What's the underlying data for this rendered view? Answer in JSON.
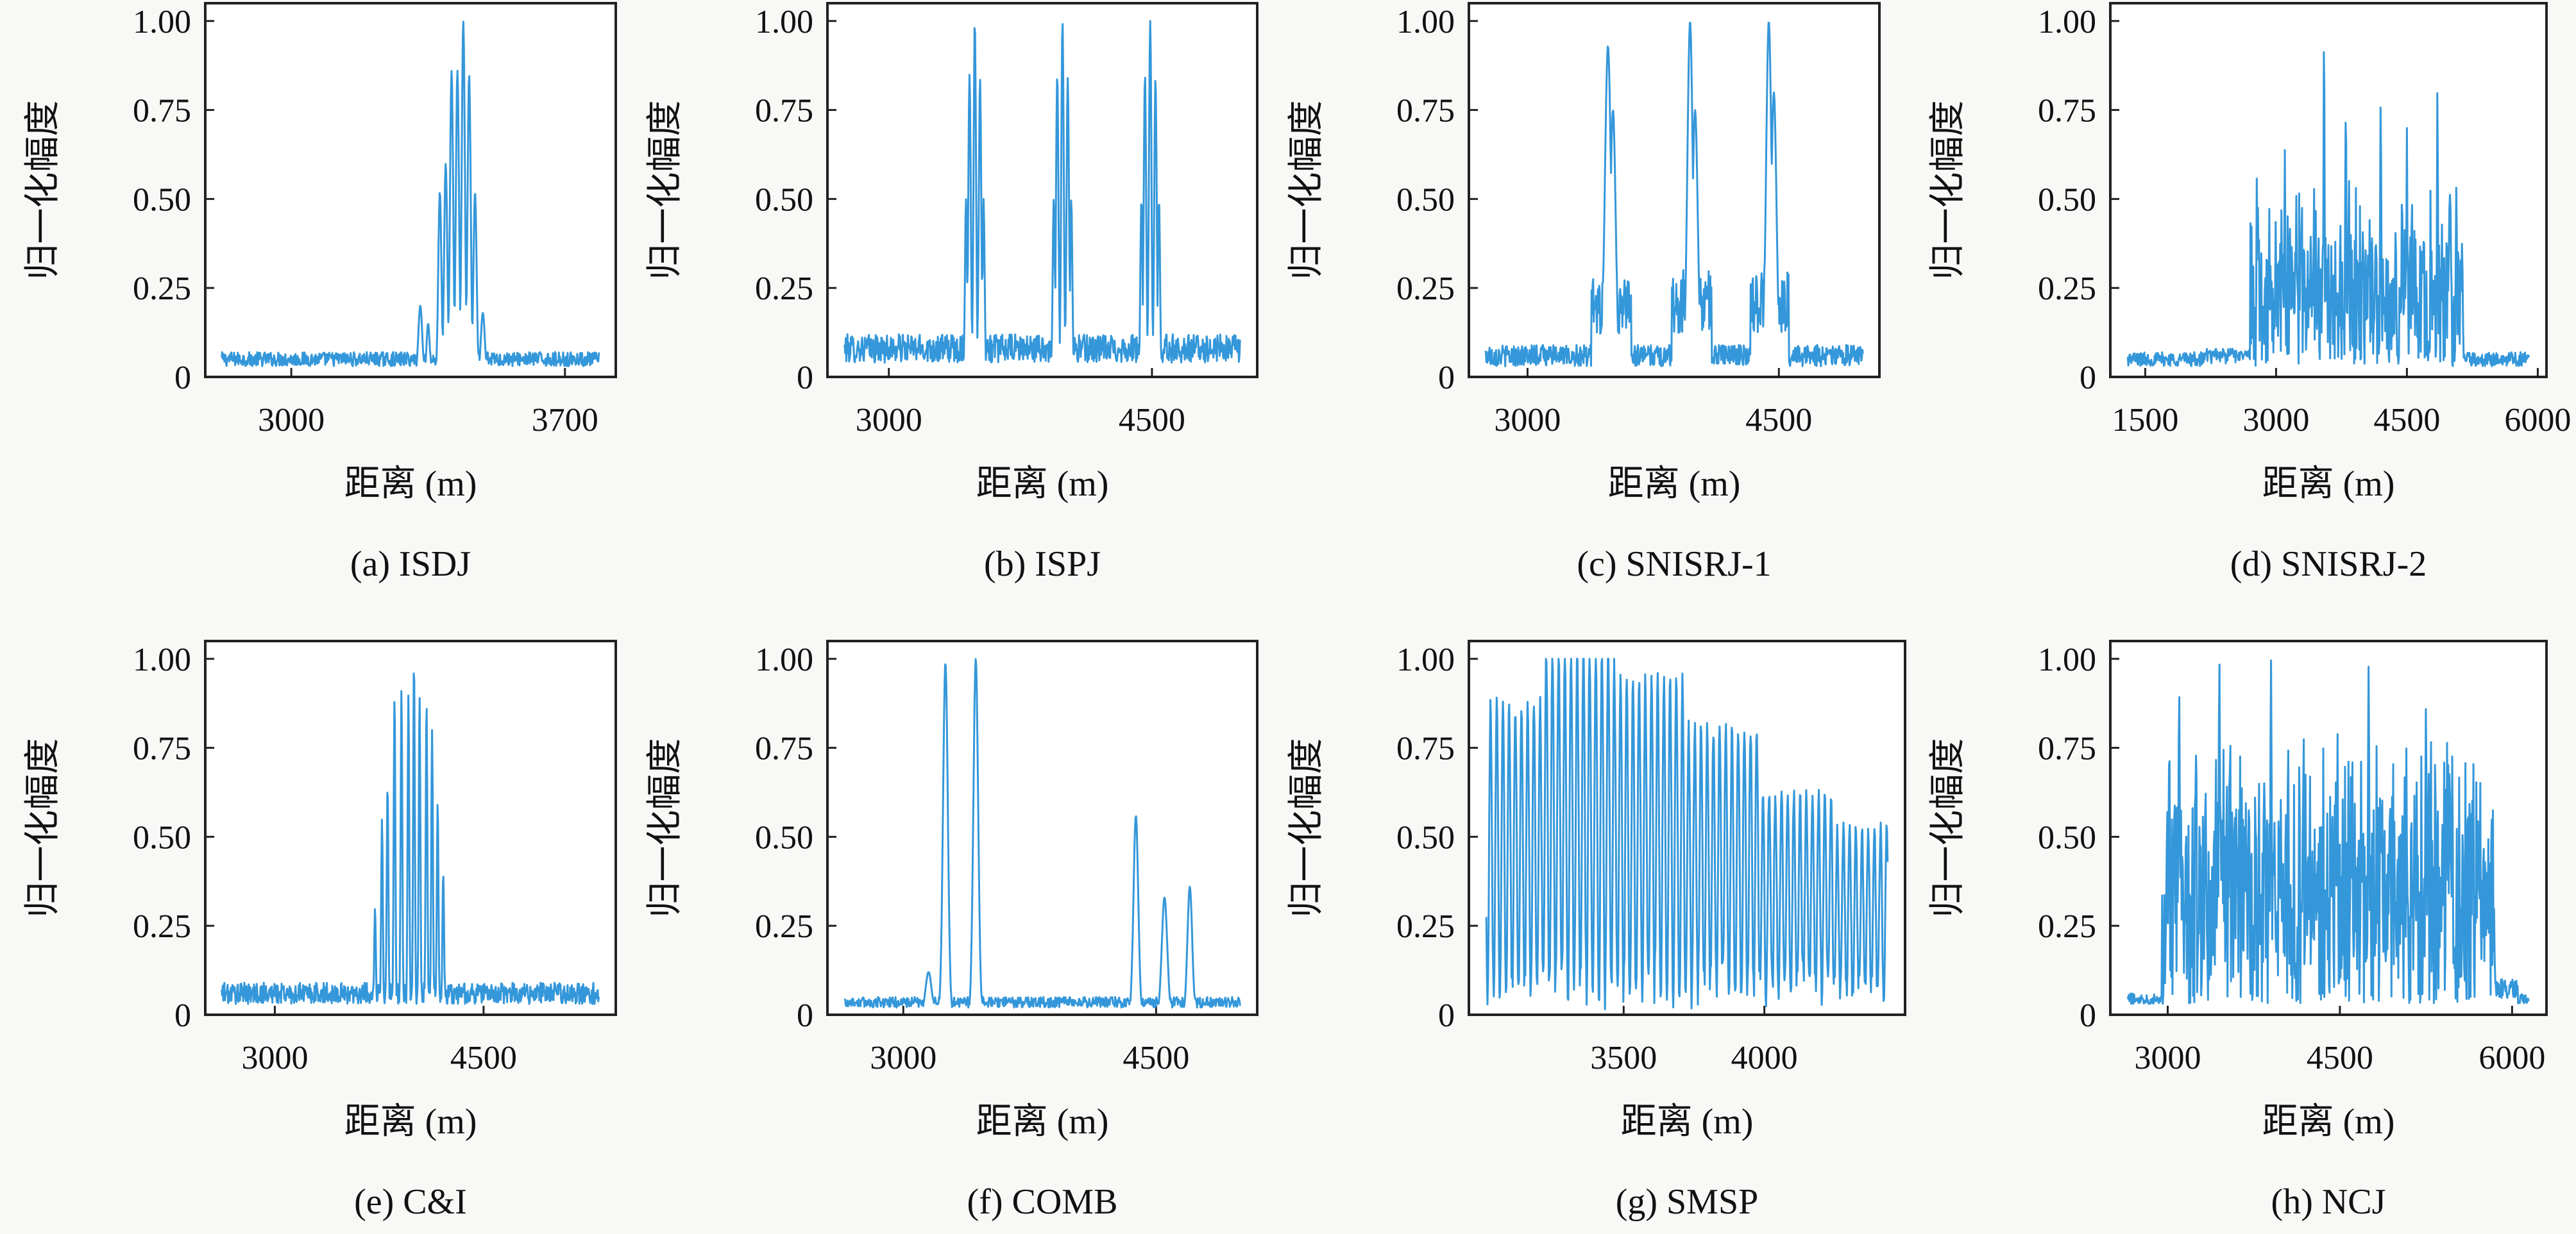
{
  "figure": {
    "series_color": "#3497da",
    "ylabel": "归一化幅度",
    "xlabel": "距离 (m)",
    "y_ticks": [
      "0",
      "0.25",
      "0.50",
      "0.75",
      "1.00"
    ]
  },
  "chart_data": [
    {
      "type": "line",
      "caption": "(a) ISDJ",
      "xlabel": "距离 (m)",
      "ylabel": "归一化幅度",
      "xlim": [
        2780,
        3830
      ],
      "ylim": [
        0,
        1.05
      ],
      "x_tick_values": [
        3000,
        3700
      ],
      "x_ticks": [
        "3000",
        "3700"
      ],
      "y_tick_values": [
        0,
        0.25,
        0.5,
        0.75,
        1
      ],
      "model": {
        "floor": 0.03,
        "noise": 0.04,
        "osc": 0,
        "peaks": [
          {
            "x": 3380,
            "a": 0.52,
            "w": 4
          },
          {
            "x": 3395,
            "a": 0.6,
            "w": 4
          },
          {
            "x": 3410,
            "a": 0.86,
            "w": 4
          },
          {
            "x": 3425,
            "a": 0.86,
            "w": 4
          },
          {
            "x": 3440,
            "a": 1.0,
            "w": 4
          },
          {
            "x": 3455,
            "a": 0.85,
            "w": 4
          },
          {
            "x": 3470,
            "a": 0.52,
            "w": 4
          },
          {
            "x": 3330,
            "a": 0.2,
            "w": 5
          },
          {
            "x": 3350,
            "a": 0.15,
            "w": 4
          },
          {
            "x": 3490,
            "a": 0.18,
            "w": 5
          }
        ],
        "ranges": []
      }
    },
    {
      "type": "line",
      "caption": "(b) ISPJ",
      "xlabel": "距离 (m)",
      "ylabel": "归一化幅度",
      "xlim": [
        2650,
        5100
      ],
      "ylim": [
        0,
        1.05
      ],
      "x_tick_values": [
        3000,
        4500
      ],
      "x_ticks": [
        "3000",
        "4500"
      ],
      "y_tick_values": [
        0,
        0.25,
        0.5,
        0.75,
        1
      ],
      "model": {
        "floor": 0.04,
        "noise": 0.08,
        "osc": 0,
        "peaks": [
          {
            "x": 3460,
            "a": 0.85,
            "w": 7
          },
          {
            "x": 3490,
            "a": 1.0,
            "w": 7
          },
          {
            "x": 3520,
            "a": 0.84,
            "w": 7
          },
          {
            "x": 3440,
            "a": 0.5,
            "w": 6
          },
          {
            "x": 3540,
            "a": 0.5,
            "w": 6
          },
          {
            "x": 3960,
            "a": 0.85,
            "w": 7
          },
          {
            "x": 3990,
            "a": 1.0,
            "w": 7
          },
          {
            "x": 4020,
            "a": 0.84,
            "w": 7
          },
          {
            "x": 3940,
            "a": 0.5,
            "w": 6
          },
          {
            "x": 4040,
            "a": 0.5,
            "w": 6
          },
          {
            "x": 4460,
            "a": 0.85,
            "w": 7
          },
          {
            "x": 4490,
            "a": 1.0,
            "w": 7
          },
          {
            "x": 4520,
            "a": 0.84,
            "w": 7
          },
          {
            "x": 4440,
            "a": 0.5,
            "w": 6
          },
          {
            "x": 4540,
            "a": 0.5,
            "w": 6
          }
        ],
        "ranges": []
      }
    },
    {
      "type": "line",
      "caption": "(c) SNISRJ-1",
      "xlabel": "距离 (m)",
      "ylabel": "归一化幅度",
      "xlim": [
        2650,
        5100
      ],
      "ylim": [
        0,
        1.05
      ],
      "x_tick_values": [
        3000,
        4500
      ],
      "x_ticks": [
        "3000",
        "4500"
      ],
      "y_tick_values": [
        0,
        0.25,
        0.5,
        0.75,
        1
      ],
      "model": {
        "floor": 0.03,
        "noise": 0.06,
        "osc": 0,
        "peaks": [
          {
            "x": 3480,
            "a": 0.93,
            "w": 18
          },
          {
            "x": 3510,
            "a": 0.75,
            "w": 16
          },
          {
            "x": 3970,
            "a": 1.0,
            "w": 16
          },
          {
            "x": 4000,
            "a": 0.75,
            "w": 16
          },
          {
            "x": 4440,
            "a": 1.0,
            "w": 16
          },
          {
            "x": 4470,
            "a": 0.8,
            "w": 16
          }
        ],
        "ranges": [
          {
            "x0": 3380,
            "x1": 3620,
            "a": 0.28
          },
          {
            "x0": 3860,
            "x1": 4100,
            "a": 0.3
          },
          {
            "x0": 4330,
            "x1": 4560,
            "a": 0.3
          },
          {
            "x0": 3000,
            "x1": 3380,
            "a": 0.05
          }
        ]
      }
    },
    {
      "type": "line",
      "caption": "(d) SNISRJ-2",
      "xlabel": "距离 (m)",
      "ylabel": "归一化幅度",
      "xlim": [
        1100,
        6100
      ],
      "ylim": [
        0,
        1.05
      ],
      "x_tick_values": [
        1500,
        3000,
        4500,
        6000
      ],
      "x_ticks": [
        "1500",
        "3000",
        "4500",
        "6000"
      ],
      "y_tick_values": [
        0,
        0.25,
        0.5,
        0.75,
        1
      ],
      "model": {
        "floor": 0.03,
        "noise": 0.04,
        "osc": 0,
        "peaks": [
          {
            "x": 3550,
            "a": 1.0,
            "w": 6
          },
          {
            "x": 4200,
            "a": 0.8,
            "w": 6
          },
          {
            "x": 3800,
            "a": 0.8,
            "w": 6
          },
          {
            "x": 4850,
            "a": 0.82,
            "w": 6
          },
          {
            "x": 3100,
            "a": 0.64,
            "w": 6
          },
          {
            "x": 4500,
            "a": 0.7,
            "w": 6
          }
        ],
        "ranges": [
          {
            "x0": 2700,
            "x1": 5150,
            "a": 0.35,
            "jitter": 0.22
          },
          {
            "x0": 2200,
            "x1": 2700,
            "a": 0.08
          }
        ]
      }
    },
    {
      "type": "line",
      "caption": "(e) C&I",
      "xlabel": "距离 (m)",
      "ylabel": "归一化幅度",
      "xlim": [
        2500,
        5450
      ],
      "ylim": [
        0,
        1.05
      ],
      "x_tick_values": [
        3000,
        4500
      ],
      "x_ticks": [
        "3000",
        "4500"
      ],
      "y_tick_values": [
        0,
        0.25,
        0.5,
        0.75,
        1
      ],
      "model": {
        "floor": 0.03,
        "noise": 0.06,
        "osc": 0,
        "peaks": [
          {
            "x": 3770,
            "a": 0.55,
            "w": 6
          },
          {
            "x": 3810,
            "a": 0.65,
            "w": 6
          },
          {
            "x": 3860,
            "a": 0.9,
            "w": 6
          },
          {
            "x": 3910,
            "a": 0.92,
            "w": 6
          },
          {
            "x": 3960,
            "a": 0.9,
            "w": 6
          },
          {
            "x": 4000,
            "a": 1.0,
            "w": 6
          },
          {
            "x": 4040,
            "a": 0.9,
            "w": 6
          },
          {
            "x": 4090,
            "a": 0.88,
            "w": 6
          },
          {
            "x": 4130,
            "a": 0.8,
            "w": 6
          },
          {
            "x": 4170,
            "a": 0.6,
            "w": 6
          },
          {
            "x": 4210,
            "a": 0.4,
            "w": 6
          },
          {
            "x": 3720,
            "a": 0.3,
            "w": 6
          }
        ],
        "ranges": []
      }
    },
    {
      "type": "line",
      "caption": "(f) COMB",
      "xlabel": "距离 (m)",
      "ylabel": "归一化幅度",
      "xlim": [
        2550,
        5100
      ],
      "ylim": [
        0,
        1.05
      ],
      "x_tick_values": [
        3000,
        4500
      ],
      "x_ticks": [
        "3000",
        "4500"
      ],
      "y_tick_values": [
        0,
        0.25,
        0.5,
        0.75,
        1
      ],
      "model": {
        "floor": 0.02,
        "noise": 0.03,
        "osc": 0,
        "peaks": [
          {
            "x": 3250,
            "a": 0.99,
            "w": 14
          },
          {
            "x": 3430,
            "a": 1.0,
            "w": 14
          },
          {
            "x": 4380,
            "a": 0.56,
            "w": 14
          },
          {
            "x": 4550,
            "a": 0.33,
            "w": 16
          },
          {
            "x": 4700,
            "a": 0.36,
            "w": 14
          },
          {
            "x": 3150,
            "a": 0.12,
            "w": 18
          }
        ],
        "ranges": []
      }
    },
    {
      "type": "line",
      "caption": "(g) SMSP",
      "xlabel": "距离 (m)",
      "ylabel": "归一化幅度",
      "xlim": [
        2950,
        4500
      ],
      "ylim": [
        0,
        1.05
      ],
      "x_tick_values": [
        3500,
        4000
      ],
      "x_ticks": [
        "3500",
        "4000"
      ],
      "y_tick_values": [
        0,
        0.25,
        0.5,
        0.75,
        1
      ],
      "model": {
        "floor": 0.12,
        "noise": 0.08,
        "osc": 1,
        "osc_period": 44,
        "osc_start": 2950,
        "osc_end": 4500,
        "osc_amp": [
          0.85,
          1.0,
          0.92,
          0.78,
          0.6,
          0.5
        ],
        "peaks": [],
        "ranges": []
      }
    },
    {
      "type": "line",
      "caption": "(h) NCJ",
      "xlabel": "距离 (m)",
      "ylabel": "归一化幅度",
      "xlim": [
        2500,
        6300
      ],
      "ylim": [
        0,
        1.05
      ],
      "x_tick_values": [
        3000,
        4500,
        6000
      ],
      "x_ticks": [
        "3000",
        "4500",
        "6000"
      ],
      "y_tick_values": [
        0,
        0.25,
        0.5,
        0.75,
        1
      ],
      "model": {
        "floor": 0.03,
        "noise": 0.03,
        "osc": 0,
        "peaks": [
          {
            "x": 3450,
            "a": 1.0,
            "w": 6
          },
          {
            "x": 3900,
            "a": 1.0,
            "w": 6
          },
          {
            "x": 4750,
            "a": 0.98,
            "w": 6
          },
          {
            "x": 5250,
            "a": 0.87,
            "w": 6
          },
          {
            "x": 3100,
            "a": 0.92,
            "w": 6
          }
        ],
        "ranges": [
          {
            "x0": 2950,
            "x1": 5850,
            "a": 0.5,
            "jitter": 0.32
          },
          {
            "x0": 5850,
            "x1": 6050,
            "a": 0.1
          }
        ]
      }
    }
  ]
}
